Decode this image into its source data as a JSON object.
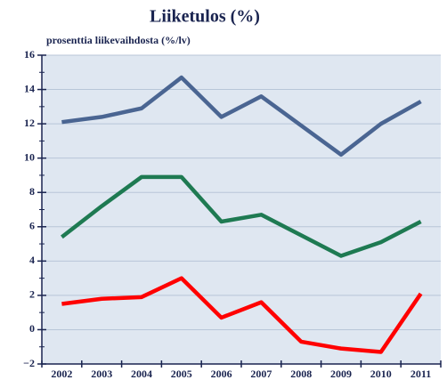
{
  "chart_data": {
    "type": "line",
    "title": "Liiketulos (%)",
    "subtitle": "prosenttia liikevaihdosta (%/lv)",
    "categories": [
      "2002",
      "2003",
      "2004",
      "2005",
      "2006",
      "2007",
      "2008",
      "2009",
      "2010",
      "2011"
    ],
    "series": [
      {
        "color": "#4a6592",
        "values": [
          12.1,
          12.4,
          12.9,
          14.7,
          12.4,
          13.6,
          11.9,
          10.2,
          12.0,
          13.3
        ]
      },
      {
        "color": "#1e7a52",
        "values": [
          5.4,
          7.2,
          8.9,
          8.9,
          6.3,
          6.7,
          5.5,
          4.3,
          5.1,
          6.3
        ]
      },
      {
        "color": "#ff0000",
        "values": [
          1.5,
          1.8,
          1.9,
          3.0,
          0.7,
          1.6,
          -0.7,
          -1.1,
          -1.3,
          2.1
        ]
      }
    ],
    "ylim": [
      -2,
      16
    ],
    "yticks": [
      {
        "value": -2,
        "label": "−2"
      },
      0,
      2,
      4,
      6,
      8,
      10,
      12,
      14,
      16
    ],
    "grid": true
  }
}
